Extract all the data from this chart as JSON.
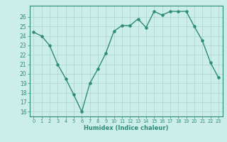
{
  "x": [
    0,
    1,
    2,
    3,
    4,
    5,
    6,
    7,
    8,
    9,
    10,
    11,
    12,
    13,
    14,
    15,
    16,
    17,
    18,
    19,
    20,
    21,
    22,
    23
  ],
  "y": [
    24.4,
    24.0,
    23.0,
    21.0,
    19.5,
    17.8,
    16.0,
    19.0,
    20.5,
    22.2,
    24.5,
    25.1,
    25.1,
    25.8,
    24.9,
    26.6,
    26.2,
    26.6,
    26.6,
    26.6,
    25.0,
    23.5,
    21.2,
    19.6
  ],
  "line_color": "#2e8b7a",
  "marker": "o",
  "markersize": 2.2,
  "linewidth": 1.0,
  "xlabel": "Humidex (Indice chaleur)",
  "xlim": [
    -0.5,
    23.5
  ],
  "ylim": [
    15.5,
    27.2
  ],
  "yticks": [
    16,
    17,
    18,
    19,
    20,
    21,
    22,
    23,
    24,
    25,
    26
  ],
  "xticks": [
    0,
    1,
    2,
    3,
    4,
    5,
    6,
    7,
    8,
    9,
    10,
    11,
    12,
    13,
    14,
    15,
    16,
    17,
    18,
    19,
    20,
    21,
    22,
    23
  ],
  "bg_color": "#cceee8",
  "grid_color": "#aad4ce",
  "line_border_color": "#2e8b7a",
  "font_color": "#2e8b7a"
}
